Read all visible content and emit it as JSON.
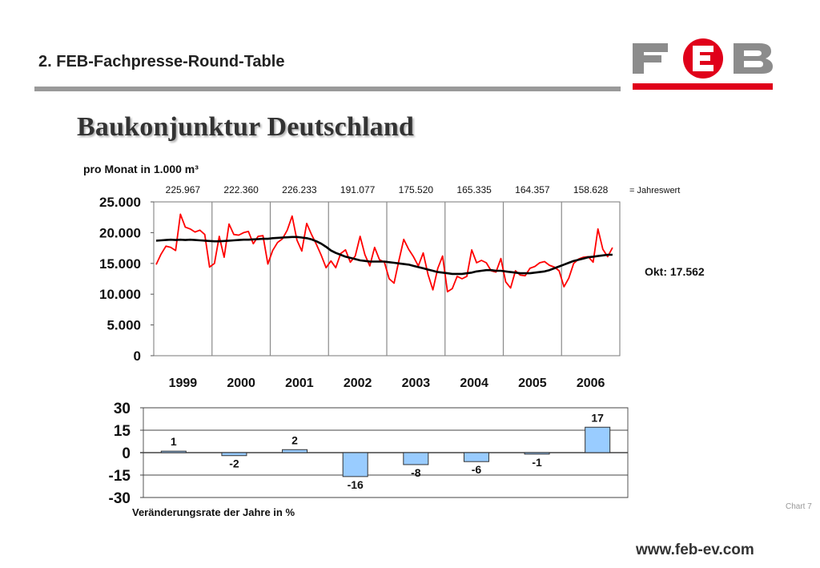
{
  "header": {
    "title": "2. FEB-Fachpresse-Round-Table"
  },
  "logo": {
    "letters": "FEB",
    "colors": {
      "gray": "#8c8c8c",
      "red": "#e0001a"
    }
  },
  "main_title": "Baukonjunktur Deutschland",
  "footer": {
    "chart_number": "Chart 7",
    "website": "www.feb-ev.com"
  },
  "chart_data": [
    {
      "type": "line",
      "title": "pro Monat in 1.000 m³",
      "annual_values": [
        "225.967",
        "222.360",
        "226.233",
        "191.077",
        "175.520",
        "165.335",
        "164.357",
        "158.628"
      ],
      "annual_label": "= Jahreswert",
      "years": [
        "1999",
        "2000",
        "2001",
        "2002",
        "2003",
        "2004",
        "2005",
        "2006"
      ],
      "ylim": [
        0,
        25000
      ],
      "y_ticks": [
        0,
        5000,
        10000,
        15000,
        20000,
        25000
      ],
      "y_tick_labels": [
        "0",
        "5.000",
        "10.000",
        "15.000",
        "20.000",
        "25.000"
      ],
      "grid": true,
      "annotation": "Okt: 17.562",
      "colors": {
        "monthly": "#ff0000",
        "trend": "#000000"
      },
      "series": [
        {
          "key": "monthly",
          "values": [
            14800,
            16500,
            17800,
            17600,
            17100,
            23000,
            20900,
            20600,
            20100,
            20400,
            19700,
            14400,
            15000,
            19400,
            16000,
            21400,
            19700,
            19600,
            20000,
            20200,
            18200,
            19400,
            19500,
            14900,
            17100,
            18400,
            19000,
            20400,
            22700,
            18800,
            17000,
            21500,
            19700,
            18100,
            16300,
            14300,
            15400,
            14300,
            16600,
            17200,
            15200,
            16200,
            19400,
            16400,
            14600,
            17600,
            15600,
            15200,
            12500,
            11800,
            15500,
            18900,
            17300,
            16100,
            14600,
            16700,
            13200,
            10700,
            14200,
            16200,
            10400,
            10900,
            12900,
            12500,
            12900,
            17200,
            15100,
            15500,
            15100,
            13800,
            13600,
            15800,
            12000,
            11000,
            13800,
            13100,
            13000,
            14200,
            14500,
            15100,
            15300,
            14700,
            14400,
            13800,
            11200,
            12600,
            15000,
            15700,
            16000,
            16100,
            15200,
            20600,
            17300,
            16100,
            17562
          ]
        },
        {
          "key": "trend",
          "values": [
            18700,
            18750,
            18800,
            18850,
            18800,
            18850,
            18800,
            18850,
            18800,
            18750,
            18700,
            18650,
            18600,
            18600,
            18650,
            18700,
            18750,
            18800,
            18850,
            18850,
            18900,
            18950,
            19000,
            19000,
            19100,
            19150,
            19200,
            19250,
            19300,
            19300,
            19200,
            19100,
            18900,
            18600,
            18200,
            17700,
            17100,
            16700,
            16400,
            16100,
            15900,
            15700,
            15500,
            15400,
            15300,
            15300,
            15300,
            15300,
            15200,
            15100,
            15000,
            14900,
            14800,
            14600,
            14400,
            14200,
            14000,
            13800,
            13600,
            13500,
            13400,
            13300,
            13300,
            13300,
            13400,
            13500,
            13700,
            13800,
            13900,
            13900,
            13800,
            13800,
            13700,
            13600,
            13500,
            13400,
            13400,
            13400,
            13500,
            13600,
            13700,
            13900,
            14200,
            14500,
            14800,
            15100,
            15400,
            15600,
            15800,
            16000,
            16100,
            16200,
            16300,
            16400,
            16400
          ]
        }
      ]
    },
    {
      "type": "bar",
      "xlabel": "Veränderungsrate der Jahre in %",
      "ylim": [
        -30,
        30
      ],
      "y_ticks": [
        30,
        15,
        0,
        -15,
        -30
      ],
      "y_tick_labels": [
        "30",
        "15",
        "0",
        "-15",
        "-30"
      ],
      "categories": [
        "1999",
        "2000",
        "2001",
        "2002",
        "2003",
        "2004",
        "2005",
        "2006"
      ],
      "values": [
        1,
        -2,
        2,
        -16,
        -8,
        -6,
        -1,
        17
      ],
      "value_labels": [
        "1",
        "-2",
        "2",
        "-16",
        "-8",
        "-6",
        "-1",
        "17"
      ],
      "colors": {
        "bar": "#99ccff",
        "bar_stroke": "#333333"
      }
    }
  ]
}
